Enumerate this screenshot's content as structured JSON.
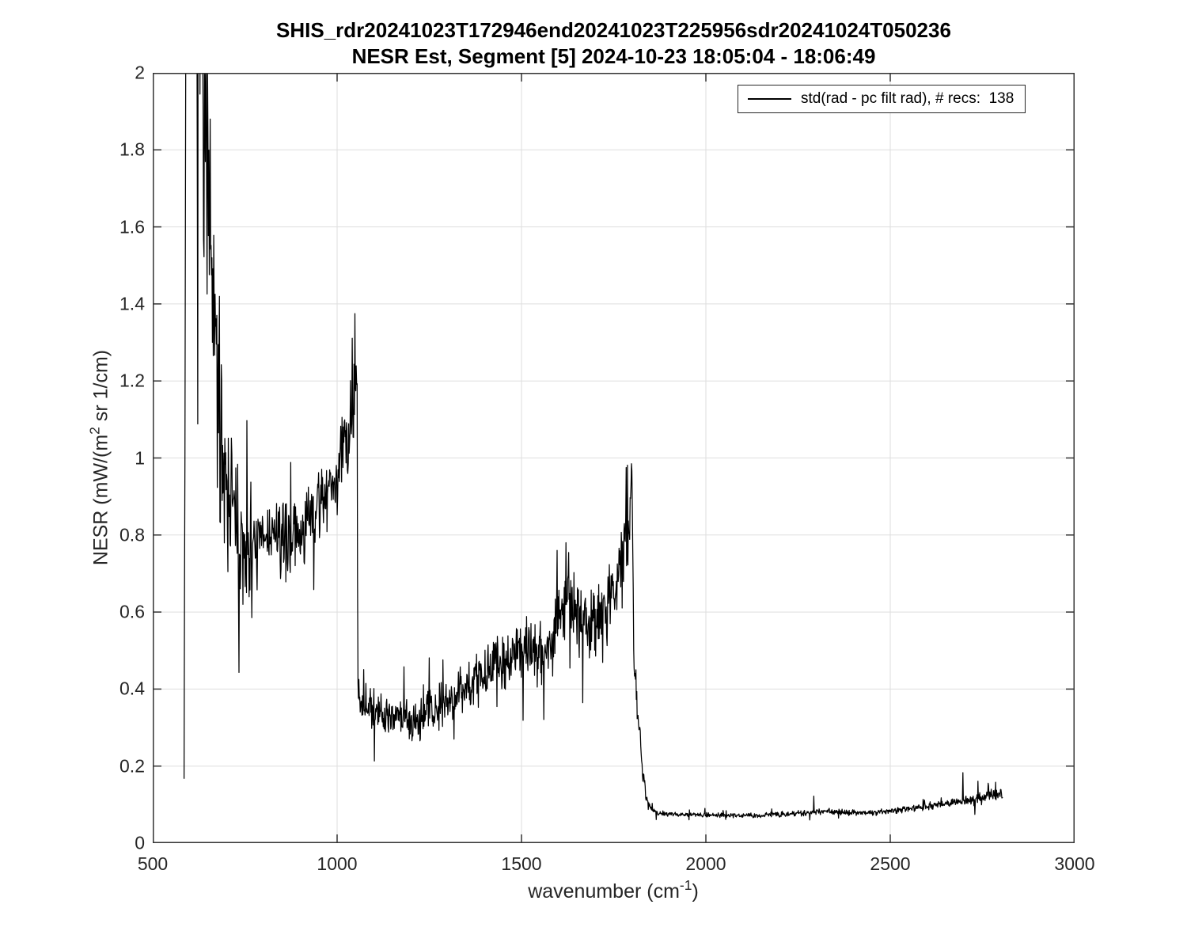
{
  "chart_data": {
    "type": "line",
    "title_line1": "SHIS_rdr20241023T172946end20241023T225956sdr20241024T050236",
    "title_line2": "NESR Est, Segment [5] 2024-10-23 18:05:04 - 18:06:49",
    "xlabel": {
      "prefix": "wavenumber (cm",
      "sup": "-1",
      "suffix": ")"
    },
    "ylabel": {
      "prefix": "NESR (mW/(m",
      "sup": "2",
      "suffix": " sr 1/cm)"
    },
    "xlim": [
      500,
      3000
    ],
    "ylim": [
      0,
      2
    ],
    "xticks": {
      "values": [
        500,
        1000,
        1500,
        2000,
        2500,
        3000
      ],
      "labels": [
        "500",
        "1000",
        "1500",
        "2000",
        "2500",
        "3000"
      ]
    },
    "yticks": {
      "values": [
        0,
        0.2,
        0.4,
        0.6,
        0.8,
        1,
        1.2,
        1.4,
        1.6,
        1.8,
        2
      ],
      "labels": [
        "0",
        "0.2",
        "0.4",
        "0.6",
        "0.8",
        "1",
        "1.2",
        "1.4",
        "1.6",
        "1.8",
        "2"
      ]
    },
    "grid": true,
    "grid_color": "#dedede",
    "axis_color": "#333333",
    "line_color": "#000000",
    "legend": {
      "label": "std(rad - pc filt rad), # recs:  138",
      "n_records": 138,
      "position": "top-right"
    },
    "series": {
      "name": "std(rad - pc filt rad)",
      "x_start": 585,
      "x_end": 2805,
      "x_step": 1.2,
      "seed": 7,
      "spike_prob": 0.02,
      "spike_up_bias": 0.55,
      "trend": [
        [
          585,
          0.22
        ],
        [
          587,
          0.9
        ],
        [
          589,
          1.8
        ],
        [
          591,
          2.3
        ],
        [
          600,
          2.35
        ],
        [
          615,
          2.3
        ],
        [
          630,
          2.2
        ],
        [
          640,
          2.0
        ],
        [
          648,
          1.75
        ],
        [
          656,
          1.5
        ],
        [
          666,
          1.32
        ],
        [
          678,
          1.15
        ],
        [
          692,
          1.02
        ],
        [
          706,
          0.94
        ],
        [
          720,
          0.86
        ],
        [
          735,
          0.78
        ],
        [
          750,
          0.745
        ],
        [
          765,
          0.74
        ],
        [
          780,
          0.765
        ],
        [
          800,
          0.79
        ],
        [
          825,
          0.8
        ],
        [
          850,
          0.79
        ],
        [
          875,
          0.785
        ],
        [
          900,
          0.8
        ],
        [
          925,
          0.835
        ],
        [
          950,
          0.875
        ],
        [
          975,
          0.915
        ],
        [
          1000,
          0.96
        ],
        [
          1020,
          1.03
        ],
        [
          1035,
          1.09
        ],
        [
          1045,
          1.15
        ],
        [
          1051,
          1.21
        ],
        [
          1054,
          1.26
        ],
        [
          1056,
          0.4
        ],
        [
          1060,
          0.375
        ],
        [
          1080,
          0.36
        ],
        [
          1110,
          0.35
        ],
        [
          1140,
          0.335
        ],
        [
          1170,
          0.325
        ],
        [
          1200,
          0.315
        ],
        [
          1230,
          0.325
        ],
        [
          1260,
          0.345
        ],
        [
          1290,
          0.365
        ],
        [
          1320,
          0.385
        ],
        [
          1350,
          0.405
        ],
        [
          1380,
          0.425
        ],
        [
          1410,
          0.445
        ],
        [
          1440,
          0.465
        ],
        [
          1465,
          0.49
        ],
        [
          1490,
          0.52
        ],
        [
          1510,
          0.525
        ],
        [
          1530,
          0.5
        ],
        [
          1550,
          0.49
        ],
        [
          1570,
          0.51
        ],
        [
          1590,
          0.55
        ],
        [
          1610,
          0.6
        ],
        [
          1625,
          0.625
        ],
        [
          1640,
          0.605
        ],
        [
          1660,
          0.575
        ],
        [
          1680,
          0.56
        ],
        [
          1700,
          0.575
        ],
        [
          1720,
          0.6
        ],
        [
          1740,
          0.635
        ],
        [
          1760,
          0.675
        ],
        [
          1775,
          0.72
        ],
        [
          1787,
          0.78
        ],
        [
          1794,
          0.86
        ],
        [
          1798,
          0.96
        ],
        [
          1800,
          1.0
        ],
        [
          1801,
          0.88
        ],
        [
          1803,
          0.62
        ],
        [
          1806,
          0.45
        ],
        [
          1810,
          0.41
        ],
        [
          1814,
          0.36
        ],
        [
          1818,
          0.3
        ],
        [
          1823,
          0.25
        ],
        [
          1828,
          0.2
        ],
        [
          1834,
          0.15
        ],
        [
          1840,
          0.115
        ],
        [
          1847,
          0.095
        ],
        [
          1855,
          0.085
        ],
        [
          1870,
          0.079
        ],
        [
          1900,
          0.0755
        ],
        [
          1950,
          0.074
        ],
        [
          2000,
          0.0735
        ],
        [
          2050,
          0.0725
        ],
        [
          2100,
          0.072
        ],
        [
          2150,
          0.0725
        ],
        [
          2200,
          0.0745
        ],
        [
          2250,
          0.077
        ],
        [
          2290,
          0.0795
        ],
        [
          2320,
          0.083
        ],
        [
          2350,
          0.0825
        ],
        [
          2380,
          0.08
        ],
        [
          2410,
          0.0785
        ],
        [
          2440,
          0.079
        ],
        [
          2470,
          0.081
        ],
        [
          2500,
          0.084
        ],
        [
          2530,
          0.087
        ],
        [
          2560,
          0.09
        ],
        [
          2590,
          0.0935
        ],
        [
          2620,
          0.098
        ],
        [
          2650,
          0.102
        ],
        [
          2680,
          0.106
        ],
        [
          2710,
          0.111
        ],
        [
          2740,
          0.116
        ],
        [
          2770,
          0.122
        ],
        [
          2790,
          0.127
        ],
        [
          2805,
          0.131
        ]
      ],
      "noise": [
        [
          585,
          0.03
        ],
        [
          589,
          0.25
        ],
        [
          600,
          0.32
        ],
        [
          620,
          0.33
        ],
        [
          640,
          0.3
        ],
        [
          655,
          0.24
        ],
        [
          670,
          0.2
        ],
        [
          690,
          0.16
        ],
        [
          710,
          0.13
        ],
        [
          730,
          0.11
        ],
        [
          750,
          0.085
        ],
        [
          780,
          0.065
        ],
        [
          820,
          0.06
        ],
        [
          860,
          0.06
        ],
        [
          900,
          0.06
        ],
        [
          940,
          0.06
        ],
        [
          980,
          0.062
        ],
        [
          1020,
          0.065
        ],
        [
          1050,
          0.07
        ],
        [
          1056,
          0.035
        ],
        [
          1100,
          0.033
        ],
        [
          1150,
          0.033
        ],
        [
          1200,
          0.034
        ],
        [
          1250,
          0.036
        ],
        [
          1300,
          0.038
        ],
        [
          1350,
          0.04
        ],
        [
          1400,
          0.042
        ],
        [
          1450,
          0.045
        ],
        [
          1500,
          0.05
        ],
        [
          1550,
          0.052
        ],
        [
          1600,
          0.058
        ],
        [
          1650,
          0.06
        ],
        [
          1700,
          0.058
        ],
        [
          1750,
          0.06
        ],
        [
          1780,
          0.065
        ],
        [
          1795,
          0.055
        ],
        [
          1800,
          0.04
        ],
        [
          1805,
          0.045
        ],
        [
          1812,
          0.035
        ],
        [
          1820,
          0.028
        ],
        [
          1830,
          0.02
        ],
        [
          1840,
          0.012
        ],
        [
          1850,
          0.006
        ],
        [
          1880,
          0.004
        ],
        [
          1950,
          0.0038
        ],
        [
          2050,
          0.0038
        ],
        [
          2150,
          0.004
        ],
        [
          2250,
          0.0045
        ],
        [
          2330,
          0.005
        ],
        [
          2400,
          0.0045
        ],
        [
          2500,
          0.005
        ],
        [
          2570,
          0.0058
        ],
        [
          2640,
          0.007
        ],
        [
          2700,
          0.009
        ],
        [
          2750,
          0.011
        ],
        [
          2805,
          0.012
        ]
      ],
      "spikes": [
        [
          744,
          0.62
        ],
        [
          1048.6,
          1.375
        ],
        [
          1204,
          0.282
        ],
        [
          1597,
          0.76
        ],
        [
          1620,
          0.78
        ],
        [
          2292,
          0.122
        ],
        [
          2697,
          0.183
        ],
        [
          2738,
          0.161
        ],
        [
          2786,
          0.158
        ]
      ]
    }
  }
}
